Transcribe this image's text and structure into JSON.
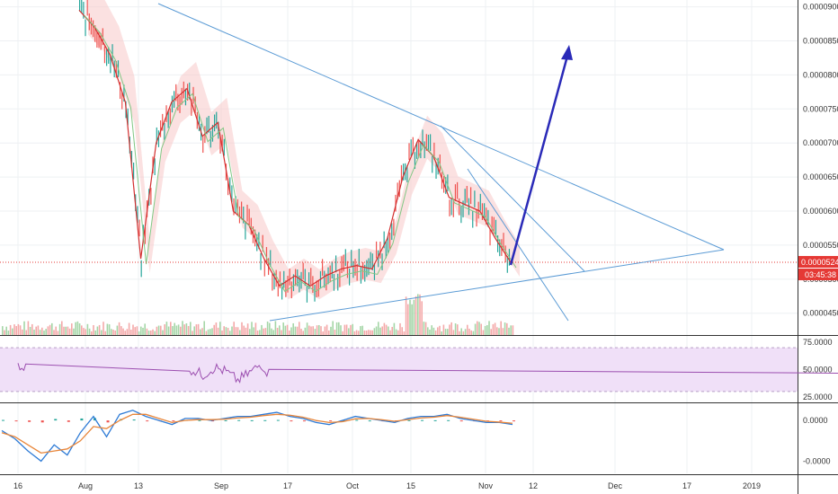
{
  "colors": {
    "trendline": "#5b9bd5",
    "arrow": "#2a2ab8",
    "price_line": "#e53935",
    "rsi": "#9c4fb0",
    "rsi_band": "#f0e0f8",
    "macd": "#2e7bd6",
    "signal": "#e8863a",
    "hist_up": "#26a69a",
    "hist_down": "#ef5350",
    "vol_up": "#a5d6a7",
    "vol_down": "#f4a9a9",
    "cloud_bull": "#c8e6c9",
    "cloud_bear": "#f8c9c9"
  },
  "chart_data": [
    {
      "type": "line",
      "title": "",
      "series": [
        {
          "x": [
            "Aug 2",
            "Aug 6",
            "Aug 9",
            "Aug 12",
            "Aug 14",
            "Aug 17",
            "Aug 21",
            "Aug 25",
            "Aug 29",
            "Sep 2",
            "Sep 6",
            "Sep 10",
            "Sep 14",
            "Sep 17",
            "Sep 20",
            "Sep 24",
            "Sep 28",
            "Oct 2",
            "Oct 6",
            "Oct 10",
            "Oct 14",
            "Oct 17",
            "Oct 20",
            "Oct 24",
            "Oct 28",
            "Nov 1",
            "Nov 4",
            "Nov 6",
            "Nov 8"
          ],
          "values": [
            8.95e-05,
            8.7e-05,
            8.3e-05,
            7.6e-05,
            5.3e-05,
            7e-05,
            7.6e-05,
            7.8e-05,
            7.1e-05,
            7.3e-05,
            6e-05,
            5.8e-05,
            5.3e-05,
            4.9e-05,
            5.05e-05,
            4.9e-05,
            5.05e-05,
            5.15e-05,
            5.2e-05,
            5.15e-05,
            5.6e-05,
            6.5e-05,
            7.05e-05,
            6.8e-05,
            6.2e-05,
            6.1e-05,
            6e-05,
            5.6e-05,
            5.248e-05
          ]
        }
      ],
      "ylim": [
        4.18e-05,
        9.1e-05
      ],
      "y_ticks": [
        "0.00009000",
        "0.00008500",
        "0.00008000",
        "0.00007500",
        "0.00007000",
        "0.00006500",
        "0.00006000",
        "0.00005500",
        "0.00005000",
        "0.00004500"
      ],
      "x_ticks": [
        "16",
        "Aug",
        "13",
        "Sep",
        "17",
        "Oct",
        "15",
        "Nov",
        "12",
        "Dec",
        "17",
        "2019"
      ],
      "last_price": "0.00005248",
      "countdown": "03:45:38",
      "grid": true
    },
    {
      "type": "line",
      "title": "",
      "series": [
        {
          "values": [
            55,
            50,
            45,
            52,
            48,
            40,
            47,
            55,
            42,
            38,
            53,
            60,
            70,
            50,
            62,
            65,
            58,
            60,
            55,
            62,
            58,
            48,
            52,
            50,
            56,
            62,
            55,
            60,
            50,
            58,
            54,
            52,
            60,
            78,
            70,
            72,
            62,
            55,
            58,
            50,
            54,
            62,
            45,
            35,
            30
          ]
        }
      ],
      "ylim": [
        20,
        80
      ],
      "y_ticks": [
        "75.0000",
        "50.0000",
        "25.0000"
      ],
      "bands": [
        70,
        30
      ]
    },
    {
      "type": "line",
      "title": "",
      "series": [
        {
          "values": [
            -0.25,
            -0.45,
            -0.75,
            -1.0,
            -0.6,
            -0.85,
            -0.3,
            0.1,
            -0.4,
            0.15,
            0.25,
            0.1,
            0.0,
            -0.1,
            0.05,
            0.05,
            0.0,
            0.05,
            0.1,
            0.1,
            0.15,
            0.2,
            0.1,
            0.05,
            -0.05,
            -0.1,
            0.0,
            0.1,
            0.05,
            0.0,
            -0.05,
            0.05,
            0.1,
            0.1,
            0.15,
            0.05,
            0.0,
            -0.05,
            -0.05,
            -0.1
          ]
        },
        {
          "values": [
            -0.3,
            -0.4,
            -0.6,
            -0.8,
            -0.75,
            -0.7,
            -0.5,
            -0.15,
            -0.2,
            0.0,
            0.15,
            0.15,
            0.05,
            -0.05,
            0.0,
            0.02,
            0.02,
            0.03,
            0.06,
            0.08,
            0.12,
            0.15,
            0.13,
            0.08,
            0.0,
            -0.05,
            -0.03,
            0.04,
            0.05,
            0.02,
            -0.02,
            0.02,
            0.06,
            0.08,
            0.12,
            0.08,
            0.03,
            -0.02,
            -0.04,
            -0.07
          ]
        }
      ],
      "ylim": [
        -1.3,
        0.4
      ],
      "y_ticks": [
        "0.0000",
        "-0.0000"
      ]
    }
  ]
}
